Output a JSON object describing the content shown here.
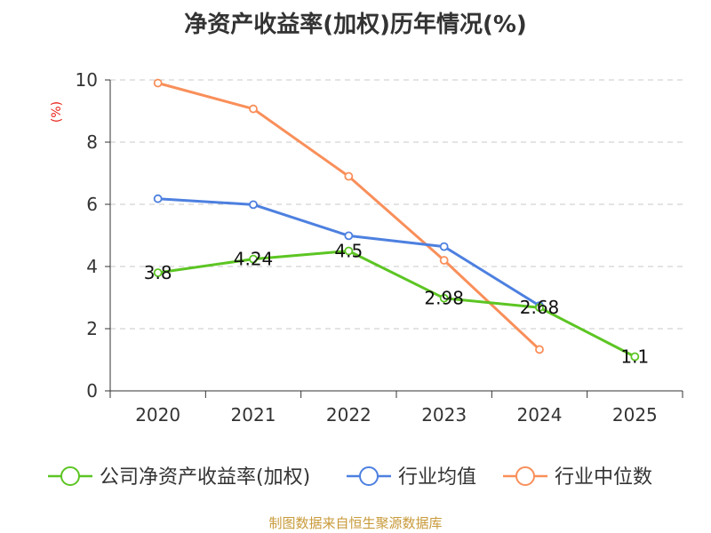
{
  "chart_data": {
    "type": "line",
    "title": "净资产收益率(加权)历年情况(%)",
    "ylabel": "(%)",
    "xlabel": "",
    "categories": [
      "2020",
      "2021",
      "2022",
      "2023",
      "2024",
      "2025"
    ],
    "ylim": [
      0,
      10
    ],
    "yticks": [
      0,
      2,
      4,
      6,
      8,
      10
    ],
    "grid": true,
    "legend_position": "bottom",
    "series": [
      {
        "name": "公司净资产收益率(加权)",
        "color": "#5cc523",
        "values": [
          3.8,
          4.24,
          4.5,
          2.98,
          2.68,
          1.1
        ],
        "labels": [
          "3.8",
          "4.24",
          "4.5",
          "2.98",
          "2.68",
          "1.1"
        ]
      },
      {
        "name": "行业均值",
        "color": "#4d80e0",
        "values": [
          6.18,
          5.99,
          4.99,
          4.64,
          2.74,
          null
        ]
      },
      {
        "name": "行业中位数",
        "color": "#f98f5a",
        "values": [
          9.9,
          9.07,
          6.9,
          4.2,
          1.33,
          null
        ]
      }
    ]
  },
  "source_text": "制图数据来自恒生聚源数据库"
}
